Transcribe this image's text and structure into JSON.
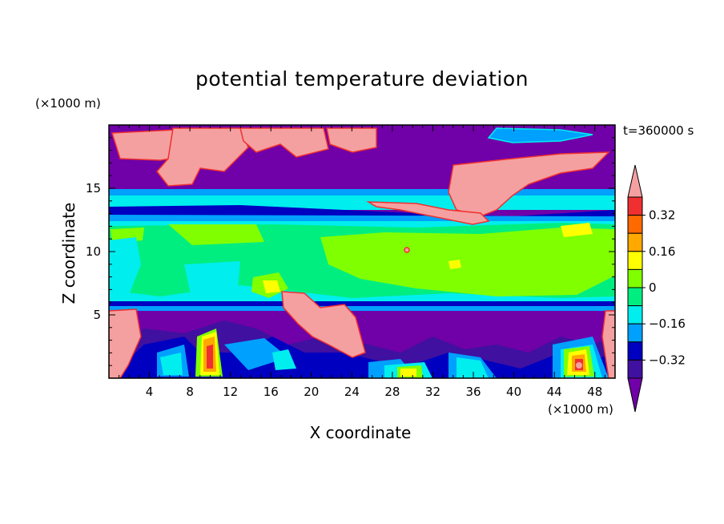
{
  "chart_data": {
    "type": "heatmap",
    "title": "potential temperature deviation",
    "xlabel": "X coordinate",
    "ylabel": "Z coordinate",
    "x_unit": "(×1000 m)",
    "y_unit": "(×1000 m)",
    "time_label": "t=360000 s",
    "xlim": [
      0,
      50
    ],
    "ylim": [
      0,
      20
    ],
    "x_ticks": [
      4,
      8,
      12,
      16,
      20,
      24,
      28,
      32,
      36,
      40,
      44,
      48
    ],
    "y_ticks": [
      5,
      10,
      15
    ],
    "colorbar": {
      "levels": [
        -0.4,
        -0.32,
        -0.24,
        -0.16,
        -0.08,
        0,
        0.08,
        0.16,
        0.24,
        0.32,
        0.4
      ],
      "labeled_levels": [
        0.32,
        0.16,
        0,
        -0.16,
        -0.32
      ],
      "labels": [
        "0.32",
        "0.16",
        "0",
        "−0.16",
        "−0.32"
      ],
      "colors": [
        "#f4a0a0",
        "#f03030",
        "#ff6a00",
        "#ffa800",
        "#ffff00",
        "#80ff00",
        "#00ee80",
        "#00eeee",
        "#00a0ff",
        "#0000c0",
        "#4010a0",
        "#7000a8"
      ],
      "extend": "both"
    },
    "field_description_levels": {
      "upper_layer_z": [
        15,
        20
      ],
      "mid_layer_z": [
        5.5,
        15
      ],
      "lower_layer_z": [
        0,
        5.5
      ]
    }
  }
}
